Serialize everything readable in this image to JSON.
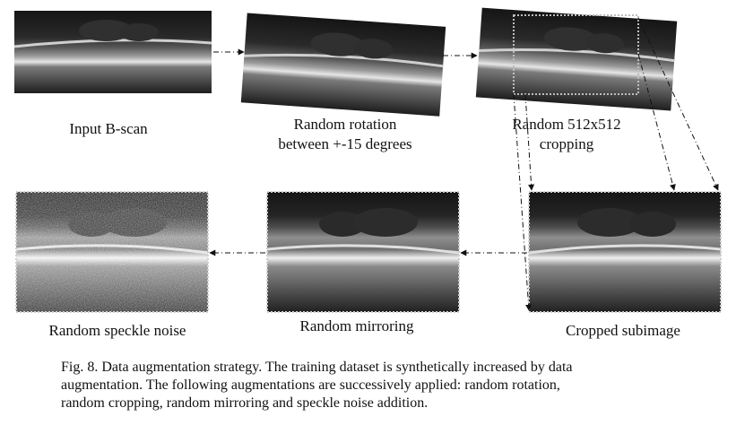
{
  "labels": {
    "input": "Input B-scan",
    "rotation_line1": "Random rotation",
    "rotation_line2": "between +-15 degrees",
    "crop_line1": "Random 512x512",
    "crop_line2": "cropping",
    "cropped": "Cropped subimage",
    "mirroring": "Random mirroring",
    "speckle": "Random speckle noise"
  },
  "caption": {
    "line1": "Fig. 8. Data augmentation strategy. The training dataset is synthetically increased by data",
    "line2": "augmentation. The following augmentations are successively applied: random rotation,",
    "line3": "random cropping, random mirroring and speckle noise addition."
  }
}
